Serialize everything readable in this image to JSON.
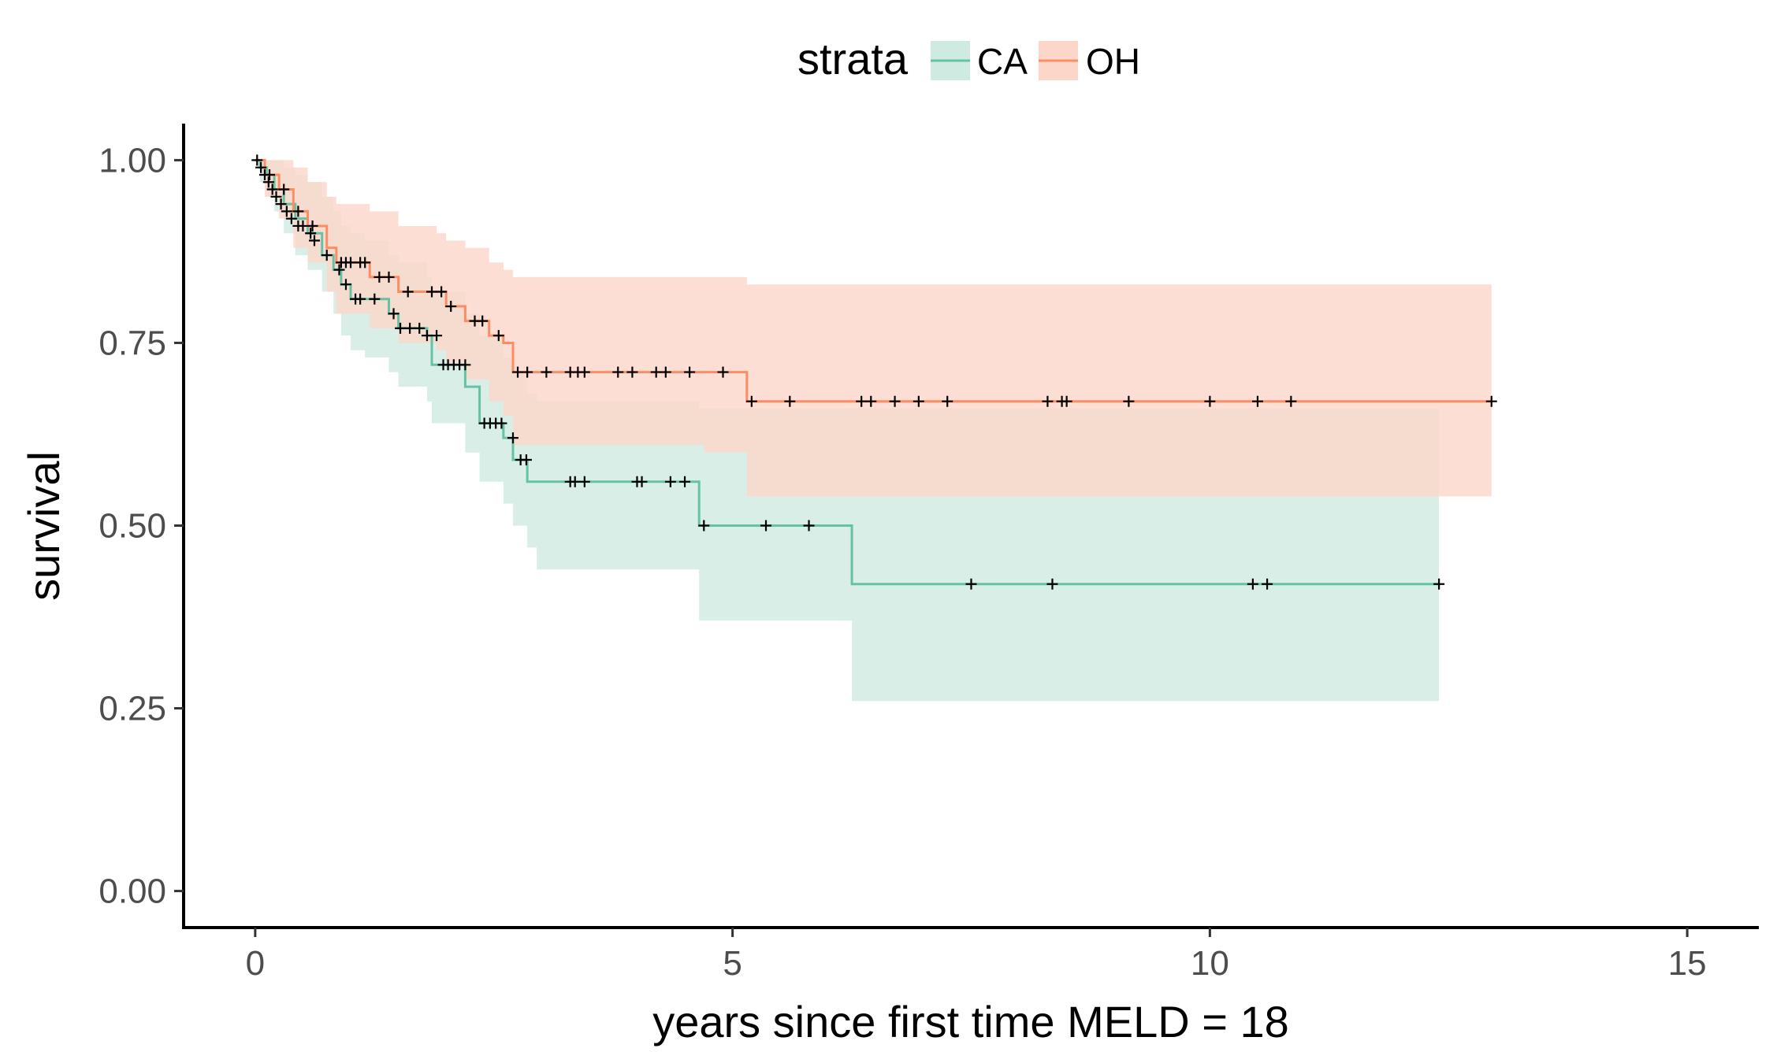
{
  "chart_data": {
    "type": "line",
    "xlabel": "years since first time MELD = 18",
    "ylabel": "survival",
    "xlim": [
      -0.75,
      15.75
    ],
    "ylim": [
      -0.05,
      1.05
    ],
    "xticks": [
      0,
      5,
      10,
      15
    ],
    "xtick_labels": [
      "0",
      "5",
      "10",
      "15"
    ],
    "yticks": [
      0,
      0.25,
      0.5,
      0.75,
      1.0
    ],
    "ytick_labels": [
      "0.00",
      "0.25",
      "0.50",
      "0.75",
      "1.00"
    ],
    "grid": false,
    "legend": {
      "title": "strata",
      "position": "top",
      "entries": [
        "CA",
        "OH"
      ]
    },
    "series": [
      {
        "name": "CA",
        "color": "#66c2a5",
        "band_color": "#cfeae1",
        "steps": [
          {
            "x": 0,
            "y": 1.0,
            "lower": 1.0,
            "upper": 1.0
          },
          {
            "x": 0.05,
            "y": 0.99,
            "lower": 0.97,
            "upper": 1.0
          },
          {
            "x": 0.12,
            "y": 0.98,
            "lower": 0.95,
            "upper": 1.0
          },
          {
            "x": 0.2,
            "y": 0.96,
            "lower": 0.93,
            "upper": 1.0
          },
          {
            "x": 0.3,
            "y": 0.94,
            "lower": 0.9,
            "upper": 0.99
          },
          {
            "x": 0.42,
            "y": 0.92,
            "lower": 0.87,
            "upper": 0.98
          },
          {
            "x": 0.55,
            "y": 0.9,
            "lower": 0.85,
            "upper": 0.97
          },
          {
            "x": 0.7,
            "y": 0.87,
            "lower": 0.82,
            "upper": 0.95
          },
          {
            "x": 0.82,
            "y": 0.85,
            "lower": 0.79,
            "upper": 0.93
          },
          {
            "x": 0.9,
            "y": 0.83,
            "lower": 0.76,
            "upper": 0.91
          },
          {
            "x": 1.0,
            "y": 0.81,
            "lower": 0.74,
            "upper": 0.9
          },
          {
            "x": 1.15,
            "y": 0.81,
            "lower": 0.73,
            "upper": 0.89
          },
          {
            "x": 1.4,
            "y": 0.79,
            "lower": 0.71,
            "upper": 0.87
          },
          {
            "x": 1.5,
            "y": 0.77,
            "lower": 0.69,
            "upper": 0.86
          },
          {
            "x": 1.8,
            "y": 0.76,
            "lower": 0.67,
            "upper": 0.84
          },
          {
            "x": 1.85,
            "y": 0.72,
            "lower": 0.64,
            "upper": 0.82
          },
          {
            "x": 2.2,
            "y": 0.69,
            "lower": 0.6,
            "upper": 0.79
          },
          {
            "x": 2.35,
            "y": 0.64,
            "lower": 0.56,
            "upper": 0.76
          },
          {
            "x": 2.6,
            "y": 0.62,
            "lower": 0.53,
            "upper": 0.73
          },
          {
            "x": 2.7,
            "y": 0.59,
            "lower": 0.5,
            "upper": 0.71
          },
          {
            "x": 2.85,
            "y": 0.56,
            "lower": 0.47,
            "upper": 0.68
          },
          {
            "x": 2.95,
            "y": 0.56,
            "lower": 0.44,
            "upper": 0.67
          },
          {
            "x": 4.65,
            "y": 0.5,
            "lower": 0.37,
            "upper": 0.66
          },
          {
            "x": 6.25,
            "y": 0.42,
            "lower": 0.26,
            "upper": 0.66
          },
          {
            "x": 12.4,
            "y": 0.42,
            "lower": 0.26,
            "upper": 0.66
          }
        ],
        "censored": [
          {
            "x": 0.02,
            "y": 1.0
          },
          {
            "x": 0.06,
            "y": 0.99
          },
          {
            "x": 0.1,
            "y": 0.98
          },
          {
            "x": 0.14,
            "y": 0.97
          },
          {
            "x": 0.18,
            "y": 0.96
          },
          {
            "x": 0.22,
            "y": 0.95
          },
          {
            "x": 0.27,
            "y": 0.94
          },
          {
            "x": 0.33,
            "y": 0.93
          },
          {
            "x": 0.38,
            "y": 0.92
          },
          {
            "x": 0.45,
            "y": 0.91
          },
          {
            "x": 0.5,
            "y": 0.91
          },
          {
            "x": 0.58,
            "y": 0.9
          },
          {
            "x": 0.62,
            "y": 0.89
          },
          {
            "x": 0.75,
            "y": 0.87
          },
          {
            "x": 0.88,
            "y": 0.85
          },
          {
            "x": 0.95,
            "y": 0.83
          },
          {
            "x": 1.05,
            "y": 0.81
          },
          {
            "x": 1.1,
            "y": 0.81
          },
          {
            "x": 1.25,
            "y": 0.81
          },
          {
            "x": 1.45,
            "y": 0.79
          },
          {
            "x": 1.52,
            "y": 0.77
          },
          {
            "x": 1.62,
            "y": 0.77
          },
          {
            "x": 1.72,
            "y": 0.77
          },
          {
            "x": 1.8,
            "y": 0.76
          },
          {
            "x": 1.9,
            "y": 0.76
          },
          {
            "x": 1.97,
            "y": 0.72
          },
          {
            "x": 2.02,
            "y": 0.72
          },
          {
            "x": 2.08,
            "y": 0.72
          },
          {
            "x": 2.14,
            "y": 0.72
          },
          {
            "x": 2.2,
            "y": 0.72
          },
          {
            "x": 2.4,
            "y": 0.64
          },
          {
            "x": 2.46,
            "y": 0.64
          },
          {
            "x": 2.52,
            "y": 0.64
          },
          {
            "x": 2.58,
            "y": 0.64
          },
          {
            "x": 2.7,
            "y": 0.62
          },
          {
            "x": 2.78,
            "y": 0.59
          },
          {
            "x": 2.84,
            "y": 0.59
          },
          {
            "x": 3.3,
            "y": 0.56
          },
          {
            "x": 3.35,
            "y": 0.56
          },
          {
            "x": 3.45,
            "y": 0.56
          },
          {
            "x": 4.0,
            "y": 0.56
          },
          {
            "x": 4.05,
            "y": 0.56
          },
          {
            "x": 4.35,
            "y": 0.56
          },
          {
            "x": 4.5,
            "y": 0.56
          },
          {
            "x": 4.7,
            "y": 0.5
          },
          {
            "x": 5.35,
            "y": 0.5
          },
          {
            "x": 5.8,
            "y": 0.5
          },
          {
            "x": 7.5,
            "y": 0.42
          },
          {
            "x": 8.35,
            "y": 0.42
          },
          {
            "x": 10.45,
            "y": 0.42
          },
          {
            "x": 10.6,
            "y": 0.42
          },
          {
            "x": 12.4,
            "y": 0.42
          }
        ]
      },
      {
        "name": "OH",
        "color": "#fc8d62",
        "band_color": "#fcd6c9",
        "steps": [
          {
            "x": 0,
            "y": 1.0,
            "lower": 1.0,
            "upper": 1.0
          },
          {
            "x": 0.1,
            "y": 0.98,
            "lower": 0.95,
            "upper": 1.0
          },
          {
            "x": 0.25,
            "y": 0.96,
            "lower": 0.92,
            "upper": 1.0
          },
          {
            "x": 0.4,
            "y": 0.93,
            "lower": 0.88,
            "upper": 0.99
          },
          {
            "x": 0.55,
            "y": 0.91,
            "lower": 0.86,
            "upper": 0.97
          },
          {
            "x": 0.75,
            "y": 0.88,
            "lower": 0.82,
            "upper": 0.95
          },
          {
            "x": 0.85,
            "y": 0.86,
            "lower": 0.79,
            "upper": 0.94
          },
          {
            "x": 1.2,
            "y": 0.84,
            "lower": 0.77,
            "upper": 0.93
          },
          {
            "x": 1.5,
            "y": 0.82,
            "lower": 0.75,
            "upper": 0.91
          },
          {
            "x": 1.9,
            "y": 0.82,
            "lower": 0.74,
            "upper": 0.9
          },
          {
            "x": 2.0,
            "y": 0.8,
            "lower": 0.72,
            "upper": 0.89
          },
          {
            "x": 2.2,
            "y": 0.78,
            "lower": 0.7,
            "upper": 0.88
          },
          {
            "x": 2.45,
            "y": 0.76,
            "lower": 0.67,
            "upper": 0.86
          },
          {
            "x": 2.6,
            "y": 0.75,
            "lower": 0.65,
            "upper": 0.85
          },
          {
            "x": 2.7,
            "y": 0.71,
            "lower": 0.61,
            "upper": 0.84
          },
          {
            "x": 4.7,
            "y": 0.71,
            "lower": 0.6,
            "upper": 0.84
          },
          {
            "x": 5.15,
            "y": 0.67,
            "lower": 0.54,
            "upper": 0.83
          },
          {
            "x": 12.95,
            "y": 0.67,
            "lower": 0.54,
            "upper": 0.83
          }
        ],
        "censored": [
          {
            "x": 0.15,
            "y": 0.98
          },
          {
            "x": 0.3,
            "y": 0.96
          },
          {
            "x": 0.45,
            "y": 0.93
          },
          {
            "x": 0.6,
            "y": 0.91
          },
          {
            "x": 0.9,
            "y": 0.86
          },
          {
            "x": 0.95,
            "y": 0.86
          },
          {
            "x": 1.0,
            "y": 0.86
          },
          {
            "x": 1.1,
            "y": 0.86
          },
          {
            "x": 1.15,
            "y": 0.86
          },
          {
            "x": 1.3,
            "y": 0.84
          },
          {
            "x": 1.4,
            "y": 0.84
          },
          {
            "x": 1.6,
            "y": 0.82
          },
          {
            "x": 1.85,
            "y": 0.82
          },
          {
            "x": 1.95,
            "y": 0.82
          },
          {
            "x": 2.05,
            "y": 0.8
          },
          {
            "x": 2.3,
            "y": 0.78
          },
          {
            "x": 2.38,
            "y": 0.78
          },
          {
            "x": 2.55,
            "y": 0.76
          },
          {
            "x": 2.75,
            "y": 0.71
          },
          {
            "x": 2.85,
            "y": 0.71
          },
          {
            "x": 3.05,
            "y": 0.71
          },
          {
            "x": 3.3,
            "y": 0.71
          },
          {
            "x": 3.38,
            "y": 0.71
          },
          {
            "x": 3.45,
            "y": 0.71
          },
          {
            "x": 3.8,
            "y": 0.71
          },
          {
            "x": 3.95,
            "y": 0.71
          },
          {
            "x": 4.2,
            "y": 0.71
          },
          {
            "x": 4.3,
            "y": 0.71
          },
          {
            "x": 4.55,
            "y": 0.71
          },
          {
            "x": 4.9,
            "y": 0.71
          },
          {
            "x": 5.2,
            "y": 0.67
          },
          {
            "x": 5.6,
            "y": 0.67
          },
          {
            "x": 6.35,
            "y": 0.67
          },
          {
            "x": 6.45,
            "y": 0.67
          },
          {
            "x": 6.7,
            "y": 0.67
          },
          {
            "x": 6.95,
            "y": 0.67
          },
          {
            "x": 7.25,
            "y": 0.67
          },
          {
            "x": 8.3,
            "y": 0.67
          },
          {
            "x": 8.45,
            "y": 0.67
          },
          {
            "x": 8.5,
            "y": 0.67
          },
          {
            "x": 9.15,
            "y": 0.67
          },
          {
            "x": 10.0,
            "y": 0.67
          },
          {
            "x": 10.5,
            "y": 0.67
          },
          {
            "x": 10.85,
            "y": 0.67
          },
          {
            "x": 12.95,
            "y": 0.67
          }
        ]
      }
    ]
  }
}
